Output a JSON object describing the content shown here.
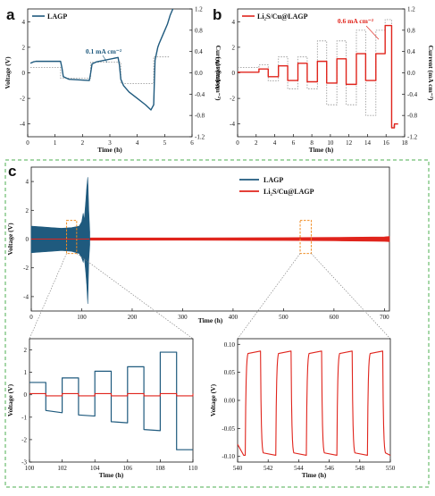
{
  "colors": {
    "lagp": "#1f5a7e",
    "li2s": "#e0241c",
    "current": "#9e9e9e",
    "highlight": "#f08c22",
    "frame": "#4caf50"
  },
  "panels": {
    "a": "a",
    "b": "b",
    "c": "c"
  },
  "chart_data": [
    {
      "id": "a",
      "type": "line",
      "title": "",
      "xlabel": "Time (h)",
      "ylabel": "Voltage (V)",
      "y2label": "Current (mA cm⁻²)",
      "xlim": [
        0,
        6
      ],
      "ylim": [
        -5,
        5
      ],
      "y2lim": [
        -1.2,
        1.2
      ],
      "xticks": [
        "0",
        "1",
        "2",
        "3",
        "4",
        "5",
        "6"
      ],
      "yticks": [
        "-4",
        "-2",
        "0",
        "2",
        "4"
      ],
      "y2ticks": [
        "-1.2",
        "-0.8",
        "-0.4",
        "0.0",
        "0.4",
        "0.8",
        "1.2"
      ],
      "legend": [
        "LAGP"
      ],
      "legend_position": "top-left",
      "annotation": "0.1 mA cm⁻²",
      "series": [
        {
          "name": "LAGP",
          "axis": "left",
          "style": "solid",
          "x": [
            0.1,
            0.2,
            0.3,
            1.2,
            1.25,
            1.3,
            1.5,
            2.25,
            2.3,
            2.35,
            2.5,
            3.3,
            3.35,
            3.4,
            3.5,
            3.7,
            4.0,
            4.3,
            4.5,
            4.6,
            4.62,
            4.65,
            4.7,
            4.75,
            4.8,
            4.9,
            5.0,
            5.1,
            5.2,
            5.3
          ],
          "y": [
            0.75,
            0.85,
            0.9,
            0.9,
            0.4,
            -0.3,
            -0.5,
            -0.6,
            0.0,
            0.7,
            0.85,
            1.2,
            0.6,
            -0.5,
            -1.0,
            -1.5,
            -2.0,
            -2.5,
            -2.9,
            -2.5,
            -1.0,
            1.0,
            1.5,
            2.0,
            2.3,
            2.8,
            3.3,
            3.8,
            4.5,
            5.0
          ]
        },
        {
          "name": "Current",
          "axis": "right",
          "style": "dotted",
          "x": [
            0.1,
            1.2,
            1.2,
            2.3,
            2.3,
            3.4,
            3.4,
            4.6,
            4.6,
            5.2
          ],
          "y": [
            0.1,
            0.1,
            -0.1,
            -0.1,
            0.2,
            0.2,
            -0.2,
            -0.2,
            0.3,
            0.3
          ]
        }
      ]
    },
    {
      "id": "b",
      "type": "line",
      "title": "",
      "xlabel": "Time (h)",
      "ylabel": "Voltage (V)",
      "y2label": "Current (mA cm⁻²)",
      "xlim": [
        0,
        18
      ],
      "ylim": [
        -5,
        5
      ],
      "y2lim": [
        -1.2,
        1.2
      ],
      "xticks": [
        "0",
        "2",
        "4",
        "6",
        "8",
        "10",
        "12",
        "14",
        "16",
        "18"
      ],
      "yticks": [
        "-4",
        "-2",
        "0",
        "2",
        "4"
      ],
      "y2ticks": [
        "-1.2",
        "-0.8",
        "-0.4",
        "0.0",
        "0.4",
        "0.8",
        "1.2"
      ],
      "legend": [
        "Li₂S/Cu@LAGP"
      ],
      "legend_position": "top-left",
      "annotation": "0.6 mA cm⁻²",
      "series": [
        {
          "name": "Li₂S/Cu@LAGP",
          "axis": "left",
          "style": "solid",
          "x": [
            0,
            2.3,
            2.3,
            3.3,
            3.3,
            4.4,
            4.4,
            5.4,
            5.4,
            6.5,
            6.5,
            7.5,
            7.5,
            8.6,
            8.6,
            9.6,
            9.6,
            10.7,
            10.7,
            11.7,
            11.7,
            12.8,
            12.8,
            13.8,
            13.8,
            14.9,
            14.9,
            15.9,
            15.9,
            16.6,
            16.6,
            16.9,
            16.9,
            17.3
          ],
          "y": [
            0.05,
            0.05,
            0.3,
            0.3,
            -0.3,
            -0.3,
            0.55,
            0.55,
            -0.6,
            -0.6,
            0.75,
            0.75,
            -0.7,
            -0.7,
            0.9,
            0.9,
            -0.8,
            -0.8,
            1.1,
            1.1,
            -0.9,
            -0.9,
            1.5,
            1.5,
            -0.6,
            -0.6,
            1.5,
            1.5,
            3.7,
            3.7,
            -4.3,
            -4.3,
            -4.0,
            -4.0
          ]
        },
        {
          "name": "Current",
          "axis": "right",
          "style": "dotted",
          "x": [
            0,
            2.3,
            2.3,
            3.3,
            3.3,
            4.4,
            4.4,
            5.4,
            5.4,
            6.5,
            6.5,
            7.5,
            7.5,
            8.6,
            8.6,
            9.6,
            9.6,
            10.7,
            10.7,
            11.7,
            11.7,
            12.8,
            12.8,
            13.8,
            13.8,
            14.9,
            14.9,
            15.9,
            15.9,
            16.6,
            16.6,
            16.9
          ],
          "y": [
            0.1,
            0.1,
            0.15,
            0.15,
            -0.15,
            -0.15,
            0.3,
            0.3,
            -0.3,
            -0.3,
            0.3,
            0.3,
            -0.3,
            -0.3,
            0.6,
            0.6,
            -0.6,
            -0.6,
            0.6,
            0.6,
            -0.6,
            -0.6,
            0.8,
            0.8,
            -0.8,
            -0.8,
            0.8,
            0.8,
            1.0,
            1.0,
            -1.0,
            -1.0
          ]
        }
      ]
    },
    {
      "id": "c",
      "type": "line",
      "title": "",
      "xlabel": "Time (h)",
      "ylabel": "Voltage (V)",
      "xlim": [
        0,
        710
      ],
      "ylim": [
        -5,
        5
      ],
      "xticks": [
        "0",
        "100",
        "200",
        "300",
        "400",
        "500",
        "600",
        "700"
      ],
      "yticks": [
        "-4",
        "-2",
        "0",
        "2",
        "4"
      ],
      "legend": [
        "LAGP",
        "Li₂S/Cu@LAGP"
      ],
      "legend_position": "top-center",
      "highlight_boxes": [
        {
          "x": [
            70,
            90
          ],
          "y": [
            -1.0,
            1.3
          ]
        },
        {
          "x": [
            533,
            555
          ],
          "y": [
            -1.0,
            1.3
          ]
        }
      ],
      "series": [
        {
          "name": "LAGP",
          "envelope_x": [
            0,
            20,
            40,
            60,
            80,
            95,
            100,
            103,
            105,
            108,
            110,
            112,
            114,
            116
          ],
          "envelope_upper": [
            0.9,
            0.85,
            0.8,
            0.75,
            0.8,
            0.9,
            1.2,
            1.8,
            1.3,
            2.6,
            3.6,
            4.3,
            2.0,
            0.5
          ],
          "envelope_lower": [
            -0.95,
            -0.9,
            -0.85,
            -0.8,
            -0.85,
            -1.0,
            -1.3,
            -1.6,
            -1.2,
            -2.3,
            -3.2,
            -4.5,
            -1.5,
            -0.4
          ]
        },
        {
          "name": "Li₂S/Cu@LAGP",
          "envelope_x": [
            0,
            100,
            200,
            300,
            400,
            500,
            600,
            700,
            710
          ],
          "envelope_upper": [
            0.08,
            0.08,
            0.08,
            0.08,
            0.09,
            0.1,
            0.12,
            0.15,
            0.18
          ],
          "envelope_lower": [
            -0.08,
            -0.08,
            -0.08,
            -0.08,
            -0.09,
            -0.1,
            -0.12,
            -0.16,
            -0.18
          ]
        }
      ]
    },
    {
      "id": "c-inset-left",
      "type": "line",
      "title": "",
      "xlabel": "Time (h)",
      "ylabel": "Voltage (V)",
      "xlim": [
        100,
        110
      ],
      "ylim": [
        -3,
        2.5
      ],
      "xticks": [
        "100",
        "102",
        "104",
        "106",
        "108",
        "110"
      ],
      "yticks": [
        "-3",
        "-2",
        "-1",
        "0",
        "1",
        "2"
      ],
      "series": [
        {
          "name": "LAGP",
          "x": [
            100,
            101,
            101,
            102,
            102,
            103,
            103,
            104,
            104,
            105,
            105,
            106,
            106,
            107,
            107,
            108,
            108,
            109,
            109,
            110
          ],
          "y_high": [
            0.55,
            0.55,
            0,
            0,
            0.75,
            0.75,
            0,
            0,
            1.05,
            1.05,
            0,
            0,
            1.25,
            1.25,
            0,
            0,
            1.9,
            1.9,
            0,
            0
          ],
          "y_low": [
            0,
            0,
            -0.7,
            -0.8,
            0,
            0,
            -0.9,
            -0.95,
            0,
            0,
            -1.2,
            -1.25,
            0,
            0,
            -1.55,
            -1.6,
            0,
            0,
            -2.45,
            -2.45
          ]
        },
        {
          "name": "Li₂S/Cu@LAGP",
          "x": [
            100,
            110
          ],
          "y": [
            0.05,
            -0.05
          ]
        }
      ]
    },
    {
      "id": "c-inset-right",
      "type": "line",
      "title": "",
      "xlabel": "Time (h)",
      "ylabel": "Voltage (V)",
      "xlim": [
        540,
        550
      ],
      "ylim": [
        -0.11,
        0.11
      ],
      "xticks": [
        "540",
        "542",
        "544",
        "546",
        "548",
        "550"
      ],
      "yticks": [
        "-0.10",
        "-0.05",
        "0.00",
        "0.05",
        "0.10"
      ],
      "series": [
        {
          "name": "Li₂S/Cu@LAGP",
          "period": 2,
          "start": 540.5,
          "high": 0.088,
          "low": -0.098
        }
      ]
    }
  ]
}
